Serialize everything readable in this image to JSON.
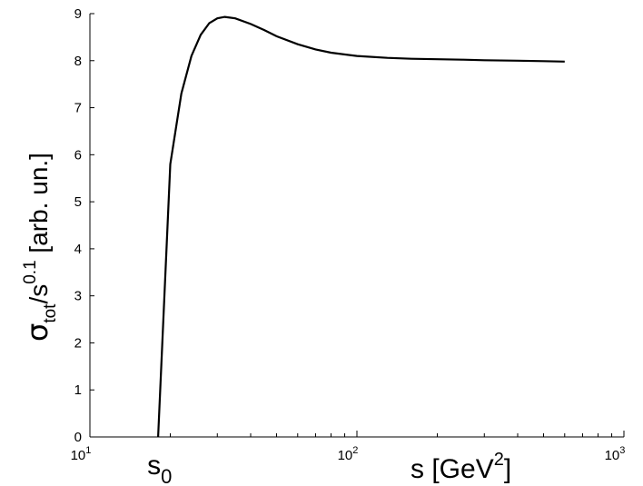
{
  "chart_data": {
    "type": "line",
    "xscale": "log",
    "xlim": [
      10,
      1000
    ],
    "ylim": [
      0,
      9
    ],
    "x_ticks": [
      {
        "value": 10,
        "base": "10",
        "exp": "1"
      },
      {
        "value": 100,
        "base": "10",
        "exp": "2"
      },
      {
        "value": 1000,
        "base": "10",
        "exp": "3"
      }
    ],
    "y_ticks": [
      0,
      1,
      2,
      3,
      4,
      5,
      6,
      7,
      8,
      9
    ],
    "xlabel": {
      "main": "s [GeV",
      "sup": "2",
      "close": "]"
    },
    "ylabel": {
      "sigma": "σ",
      "sub": "tot",
      "mid": "/s",
      "sup": "0.1",
      "tail": " [arb. un.]"
    },
    "annotation": {
      "base": "s",
      "sub": "0",
      "x": 18
    },
    "grid": false,
    "series": [
      {
        "x": [
          18,
          20,
          22,
          24,
          26,
          28,
          30,
          32,
          35,
          40,
          45,
          50,
          60,
          70,
          80,
          100,
          130,
          160,
          200,
          250,
          300,
          400,
          500,
          600
        ],
        "y": [
          0,
          5.8,
          7.3,
          8.1,
          8.55,
          8.8,
          8.9,
          8.93,
          8.9,
          8.78,
          8.65,
          8.52,
          8.35,
          8.24,
          8.17,
          8.1,
          8.06,
          8.04,
          8.03,
          8.02,
          8.01,
          8.0,
          7.99,
          7.98
        ]
      }
    ]
  }
}
